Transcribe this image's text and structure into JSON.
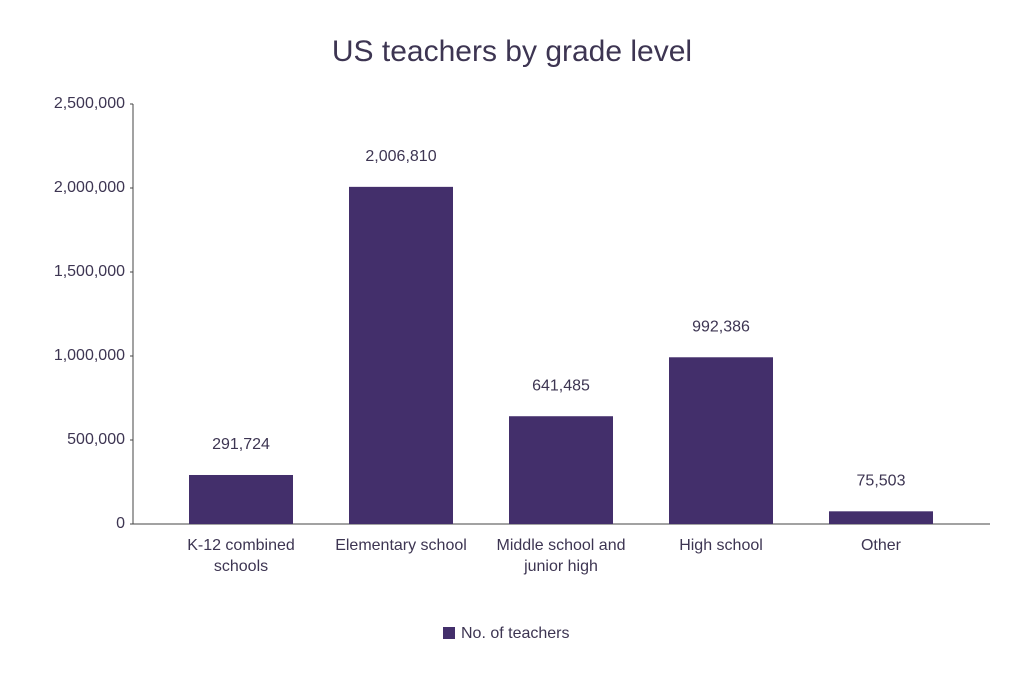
{
  "chart_data": {
    "type": "bar",
    "title": "US teachers by grade level",
    "categories": [
      "K-12 combined schools",
      "Elementary school",
      "Middle school and junior high",
      "High school",
      "Other"
    ],
    "series": [
      {
        "name": "No. of teachers",
        "color": "#432f6b",
        "values": [
          291724,
          2006810,
          641485,
          992386,
          75503
        ],
        "value_labels": [
          "291,724",
          "2,006,810",
          "641,485",
          "992,386",
          "75,503"
        ]
      }
    ],
    "ylim": [
      0,
      2500000
    ],
    "yticks": [
      0,
      {
        "value": 500000,
        "label": "500,000"
      },
      {
        "value": 1000000,
        "label": "1,000,000"
      },
      {
        "value": 1500000,
        "label": "1,500,000"
      },
      {
        "value": 2000000,
        "label": "2,000,000"
      },
      {
        "value": 2500000,
        "label": "2,500,000"
      }
    ],
    "grid": false,
    "legend": "bottom"
  }
}
